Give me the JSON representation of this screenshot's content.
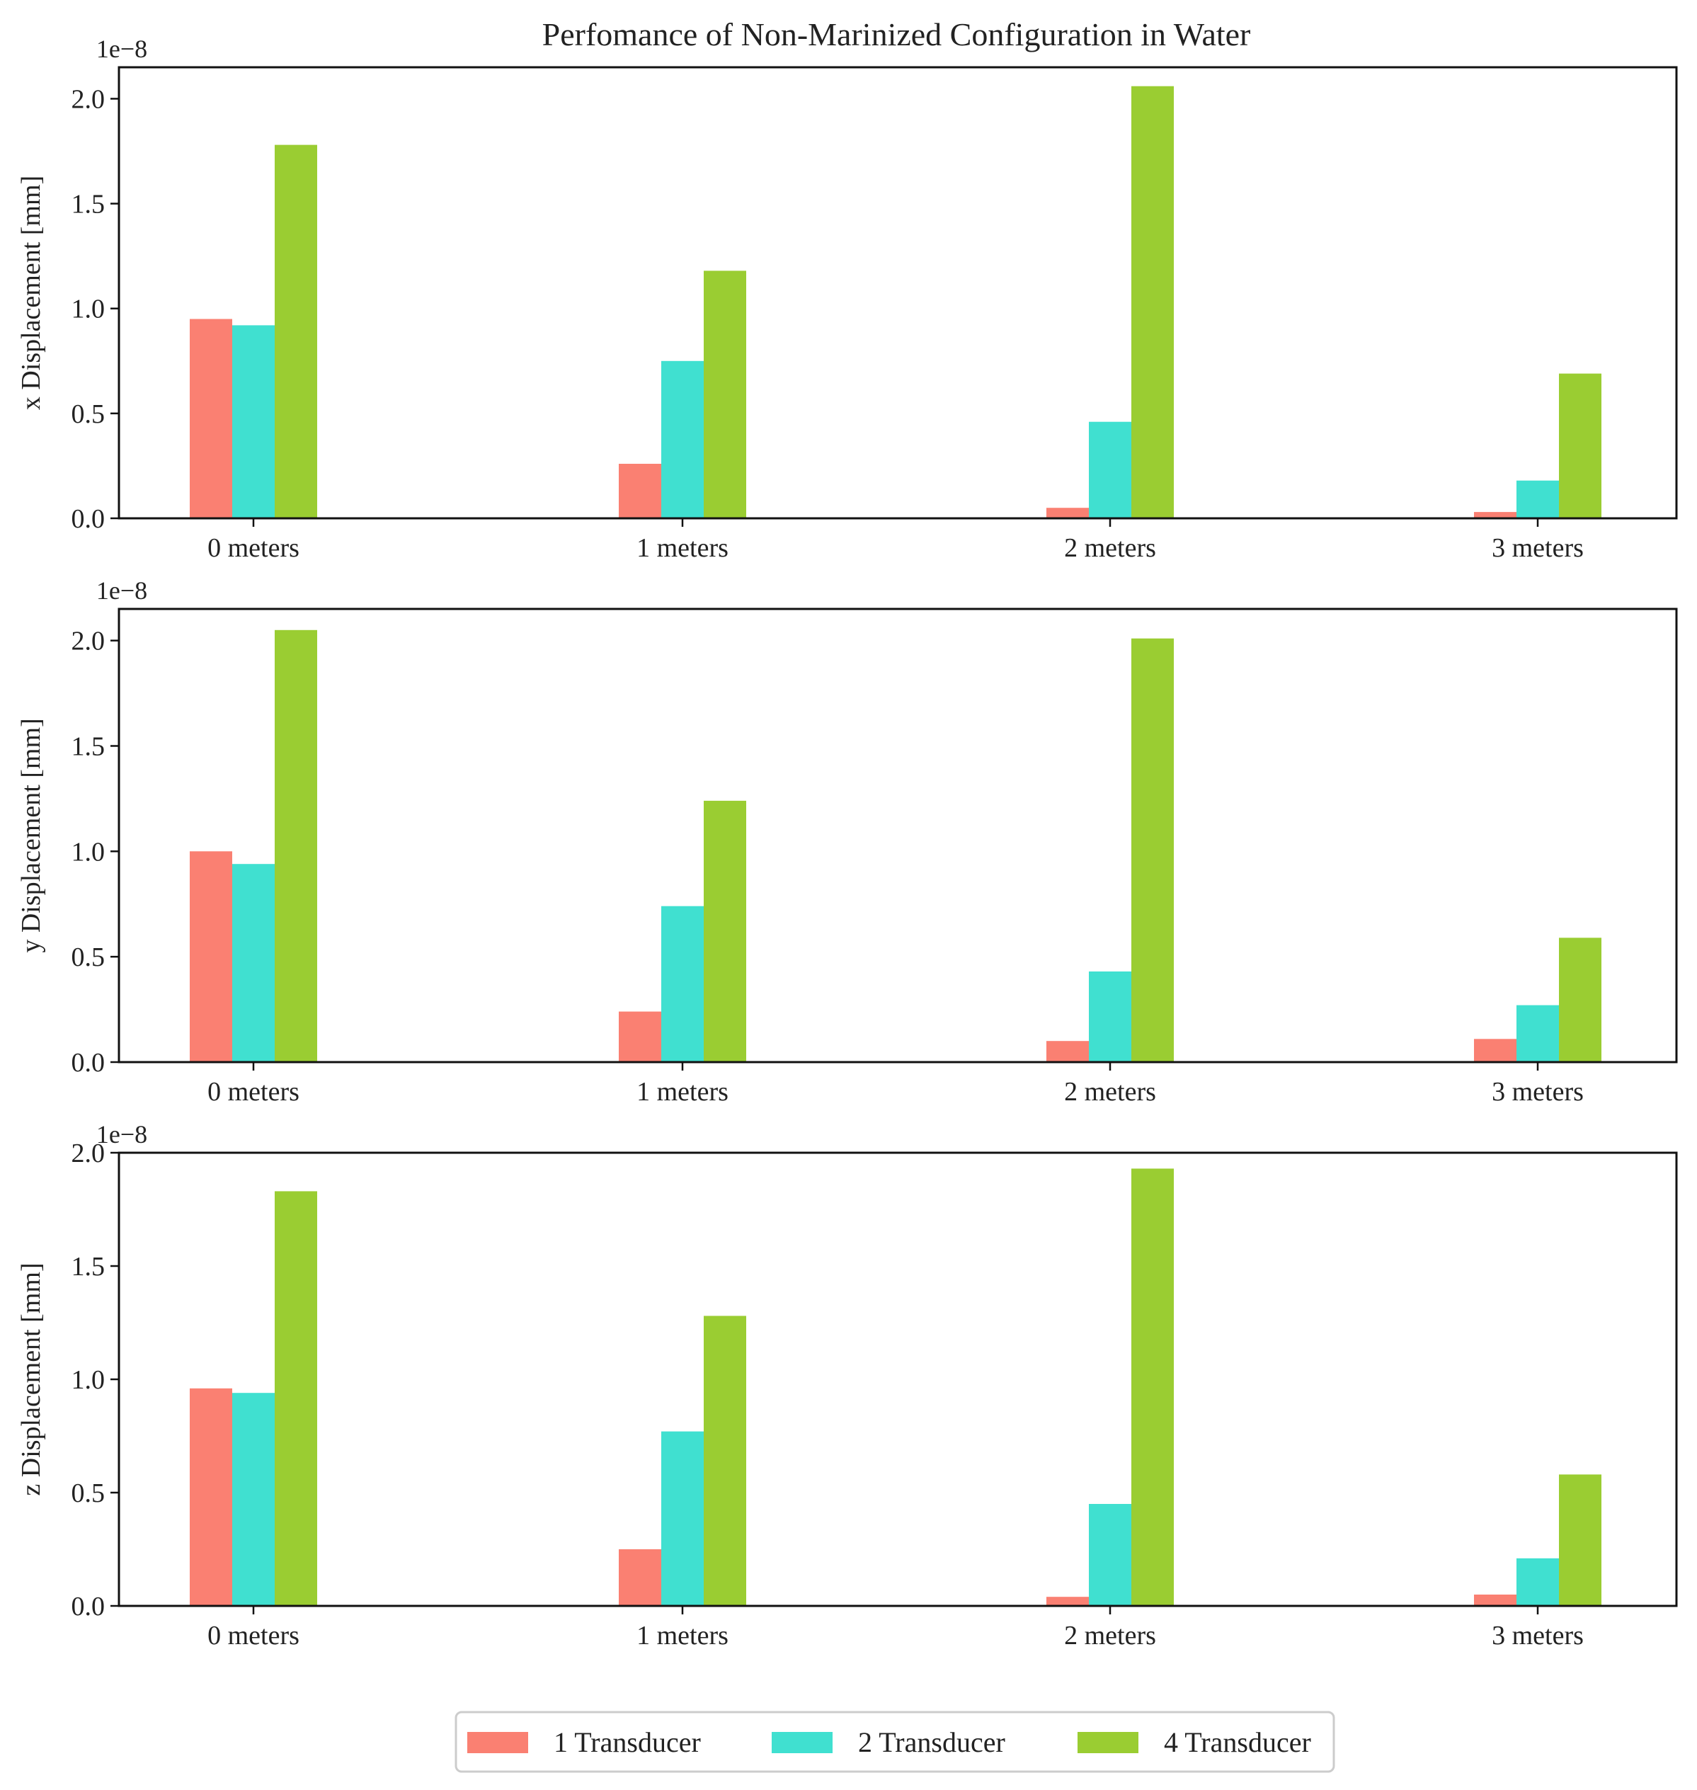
{
  "chart_data": {
    "type": "bar",
    "title": "Perfomance of Non-Marinized Configuration in Water",
    "categories": [
      "0 meters",
      "1 meters",
      "2 meters",
      "3 meters"
    ],
    "legend": {
      "placement": "bottom-center",
      "entries": [
        "1 Transducer",
        "2 Transducer",
        "4 Transducer"
      ]
    },
    "series_colors": [
      "#FA8072",
      "#40E0D0",
      "#9ACD32"
    ],
    "subplots": [
      {
        "ylabel": "x Displacement [mm]",
        "offset_label": "1e−8",
        "ylim": [
          0,
          2.15
        ],
        "yticks": [
          "0.0",
          "0.5",
          "1.0",
          "1.5",
          "2.0"
        ],
        "series": [
          {
            "name": "1 Transducer",
            "values": [
              0.95,
              0.26,
              0.05,
              0.03
            ]
          },
          {
            "name": "2 Transducer",
            "values": [
              0.92,
              0.75,
              0.46,
              0.18
            ]
          },
          {
            "name": "4 Transducer",
            "values": [
              1.78,
              1.18,
              2.06,
              0.69
            ]
          }
        ]
      },
      {
        "ylabel": "y Displacement [mm]",
        "offset_label": "1e−8",
        "ylim": [
          0,
          2.15
        ],
        "yticks": [
          "0.0",
          "0.5",
          "1.0",
          "1.5",
          "2.0"
        ],
        "series": [
          {
            "name": "1 Transducer",
            "values": [
              1.0,
              0.24,
              0.1,
              0.11
            ]
          },
          {
            "name": "2 Transducer",
            "values": [
              0.94,
              0.74,
              0.43,
              0.27
            ]
          },
          {
            "name": "4 Transducer",
            "values": [
              2.05,
              1.24,
              2.01,
              0.59
            ]
          }
        ]
      },
      {
        "ylabel": "z Displacement [mm]",
        "offset_label": "1e−8",
        "ylim": [
          0,
          2.0
        ],
        "yticks": [
          "0.0",
          "0.5",
          "1.0",
          "1.5",
          "2.0"
        ],
        "series": [
          {
            "name": "1 Transducer",
            "values": [
              0.96,
              0.25,
              0.04,
              0.05
            ]
          },
          {
            "name": "2 Transducer",
            "values": [
              0.94,
              0.77,
              0.45,
              0.21
            ]
          },
          {
            "name": "4 Transducer",
            "values": [
              1.83,
              1.28,
              1.93,
              0.58
            ]
          }
        ]
      }
    ]
  }
}
